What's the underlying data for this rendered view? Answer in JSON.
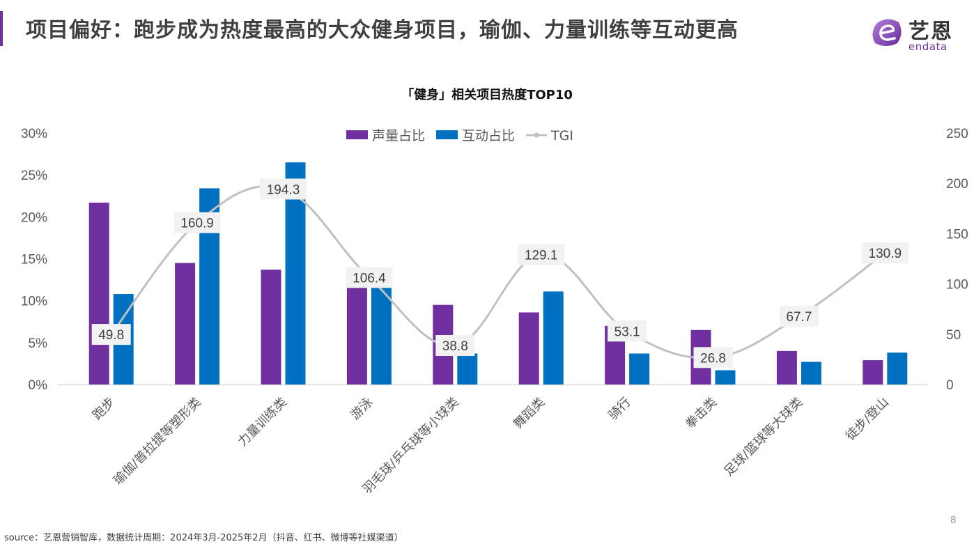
{
  "header": {
    "title": "项目偏好：跑步成为热度最高的大众健身项目，瑜伽、力量训练等互动更高",
    "accent_color": "#7030a0"
  },
  "logo": {
    "icon": "endata-e-logo-icon",
    "cn_text": "艺恩",
    "en_text": "endata"
  },
  "chart_data": {
    "type": "bar",
    "title": "「健身」相关项目热度TOP10",
    "categories": [
      "跑步",
      "瑜伽/普拉提等塑形类",
      "力量训练类",
      "游泳",
      "羽毛球/乒乓球等小球类",
      "舞蹈类",
      "骑行",
      "拳击类",
      "足球/篮球等大球类",
      "徒步/登山"
    ],
    "series": [
      {
        "name": "声量占比",
        "type": "bar",
        "axis": "left",
        "color": "#7030a0",
        "values": [
          21.7,
          14.5,
          13.7,
          12.2,
          9.5,
          8.6,
          7.0,
          6.5,
          4.0,
          2.9
        ]
      },
      {
        "name": "互动占比",
        "type": "bar",
        "axis": "left",
        "color": "#0070c0",
        "values": [
          10.8,
          23.4,
          26.5,
          13.0,
          3.7,
          11.1,
          3.7,
          1.7,
          2.7,
          3.8
        ]
      },
      {
        "name": "TGI",
        "type": "line",
        "axis": "right",
        "color": "#c0c0c0",
        "smooth": true,
        "values": [
          49.8,
          160.9,
          194.3,
          106.4,
          38.8,
          129.1,
          53.1,
          26.8,
          67.7,
          130.9
        ],
        "data_labels": [
          "49.8",
          "160.9",
          "194.3",
          "106.4",
          "38.8",
          "129.1",
          "53.1",
          "26.8",
          "67.7",
          "130.9"
        ]
      }
    ],
    "y_left": {
      "ticks": [
        "0%",
        "5%",
        "10%",
        "15%",
        "20%",
        "25%",
        "30%"
      ],
      "range": [
        0,
        30
      ],
      "unit": "%"
    },
    "y_right": {
      "ticks": [
        "0",
        "50",
        "100",
        "150",
        "200",
        "250"
      ],
      "range": [
        0,
        250
      ]
    },
    "legend": {
      "position": "top-center",
      "items": [
        {
          "label": "声量占比",
          "marker": "square",
          "color": "#7030a0"
        },
        {
          "label": "互动占比",
          "marker": "square",
          "color": "#0070c0"
        },
        {
          "label": "TGI",
          "marker": "line-dot",
          "color": "#c0c0c0"
        }
      ]
    },
    "grid": false,
    "x_label_rotation": "45-degrees"
  },
  "footer": {
    "source": "source：艺恩营销智库，数据统计周期：2024年3月-2025年2月（抖音、红书、微博等社媒渠道）",
    "page_number": "8"
  }
}
